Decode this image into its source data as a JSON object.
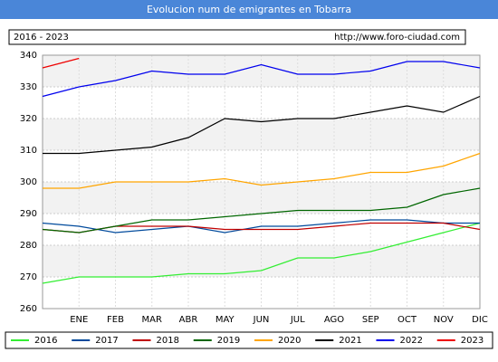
{
  "chart_data": {
    "type": "line",
    "title": "Evolucion num de emigrantes en Tobarra",
    "subtitle": "2016 - 2023",
    "source": "http://www.foro-ciudad.com",
    "categories": [
      null,
      "ENE",
      "FEB",
      "MAR",
      "ABR",
      "MAY",
      "JUN",
      "JUL",
      "AGO",
      "SEP",
      "OCT",
      "NOV",
      "DIC"
    ],
    "series": [
      {
        "name": "2016",
        "color": "#33ee33",
        "values": [
          268,
          270,
          270,
          270,
          271,
          271,
          272,
          276,
          276,
          278,
          281,
          284,
          287
        ]
      },
      {
        "name": "2017",
        "color": "#004a9c",
        "values": [
          287,
          286,
          284,
          285,
          286,
          284,
          286,
          286,
          287,
          288,
          288,
          287,
          287
        ]
      },
      {
        "name": "2018",
        "color": "#c00000",
        "values": [
          285,
          284,
          286,
          286,
          286,
          285,
          285,
          285,
          286,
          287,
          287,
          287,
          285
        ]
      },
      {
        "name": "2019",
        "color": "#006600",
        "values": [
          285,
          284,
          286,
          288,
          288,
          289,
          290,
          291,
          291,
          291,
          292,
          296,
          298
        ]
      },
      {
        "name": "2020",
        "color": "#ffa500",
        "values": [
          298,
          298,
          300,
          300,
          300,
          301,
          299,
          300,
          301,
          303,
          303,
          305,
          309
        ]
      },
      {
        "name": "2021",
        "color": "#000000",
        "values": [
          309,
          309,
          310,
          311,
          314,
          320,
          319,
          320,
          320,
          322,
          324,
          322,
          327
        ]
      },
      {
        "name": "2022",
        "color": "#0000ee",
        "values": [
          327,
          330,
          332,
          335,
          334,
          334,
          337,
          334,
          334,
          335,
          338,
          338,
          336
        ]
      },
      {
        "name": "2023",
        "color": "#ee0000",
        "values": [
          336,
          339,
          null,
          null,
          null,
          null,
          null,
          null,
          null,
          null,
          null,
          null,
          null
        ]
      }
    ],
    "ylim": [
      260,
      340
    ],
    "yticks": [
      260,
      270,
      280,
      290,
      300,
      310,
      320,
      330,
      340
    ],
    "grid": true
  }
}
